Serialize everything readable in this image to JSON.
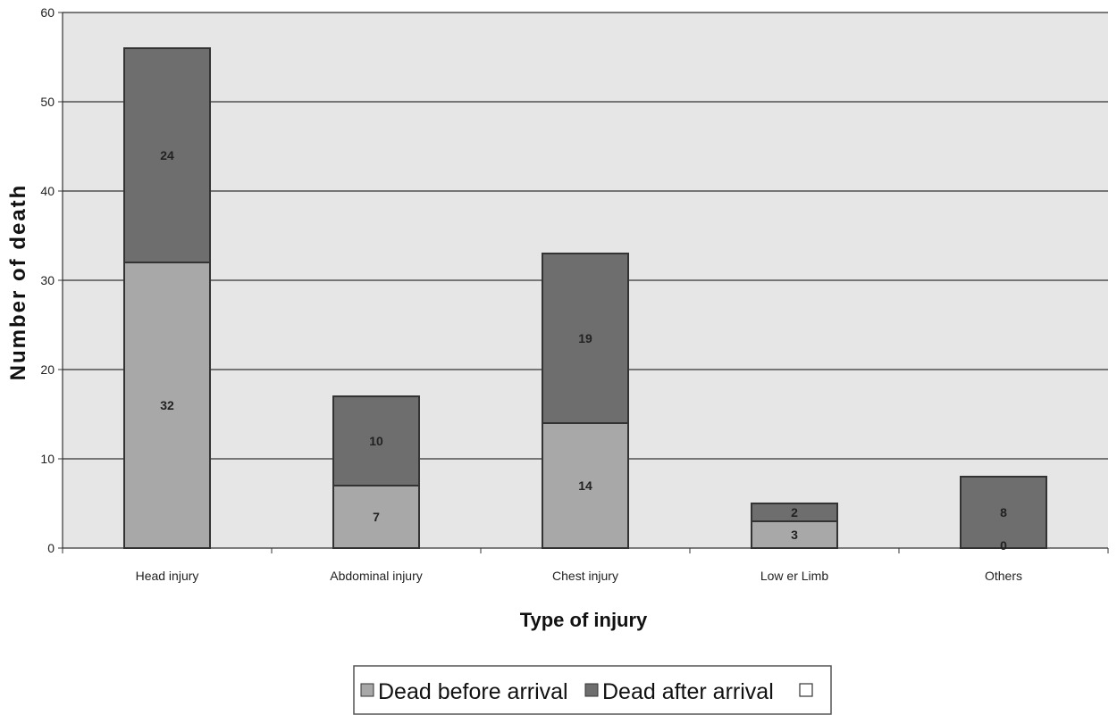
{
  "chart_data": {
    "type": "bar",
    "stacked": true,
    "categories": [
      "Head injury",
      "Abdominal injury",
      "Chest injury",
      "Low er Limb",
      "Others"
    ],
    "series": [
      {
        "name": "Dead before arrival",
        "values": [
          32,
          7,
          14,
          3,
          0
        ],
        "color": "#a8a8a8"
      },
      {
        "name": "Dead after arrival",
        "values": [
          24,
          10,
          19,
          2,
          8
        ],
        "color": "#6e6e6e"
      },
      {
        "name": "",
        "values": [
          0,
          0,
          0,
          0,
          0
        ],
        "color": "#ffffff"
      }
    ],
    "xlabel": "Type of injury",
    "ylabel": "Number of death",
    "ylim": [
      0,
      60
    ],
    "yticks": [
      0,
      10,
      20,
      30,
      40,
      50,
      60
    ],
    "grid": true,
    "legend_position": "bottom",
    "plot_background": "#e6e6e6",
    "gridline_color": "#333333"
  }
}
